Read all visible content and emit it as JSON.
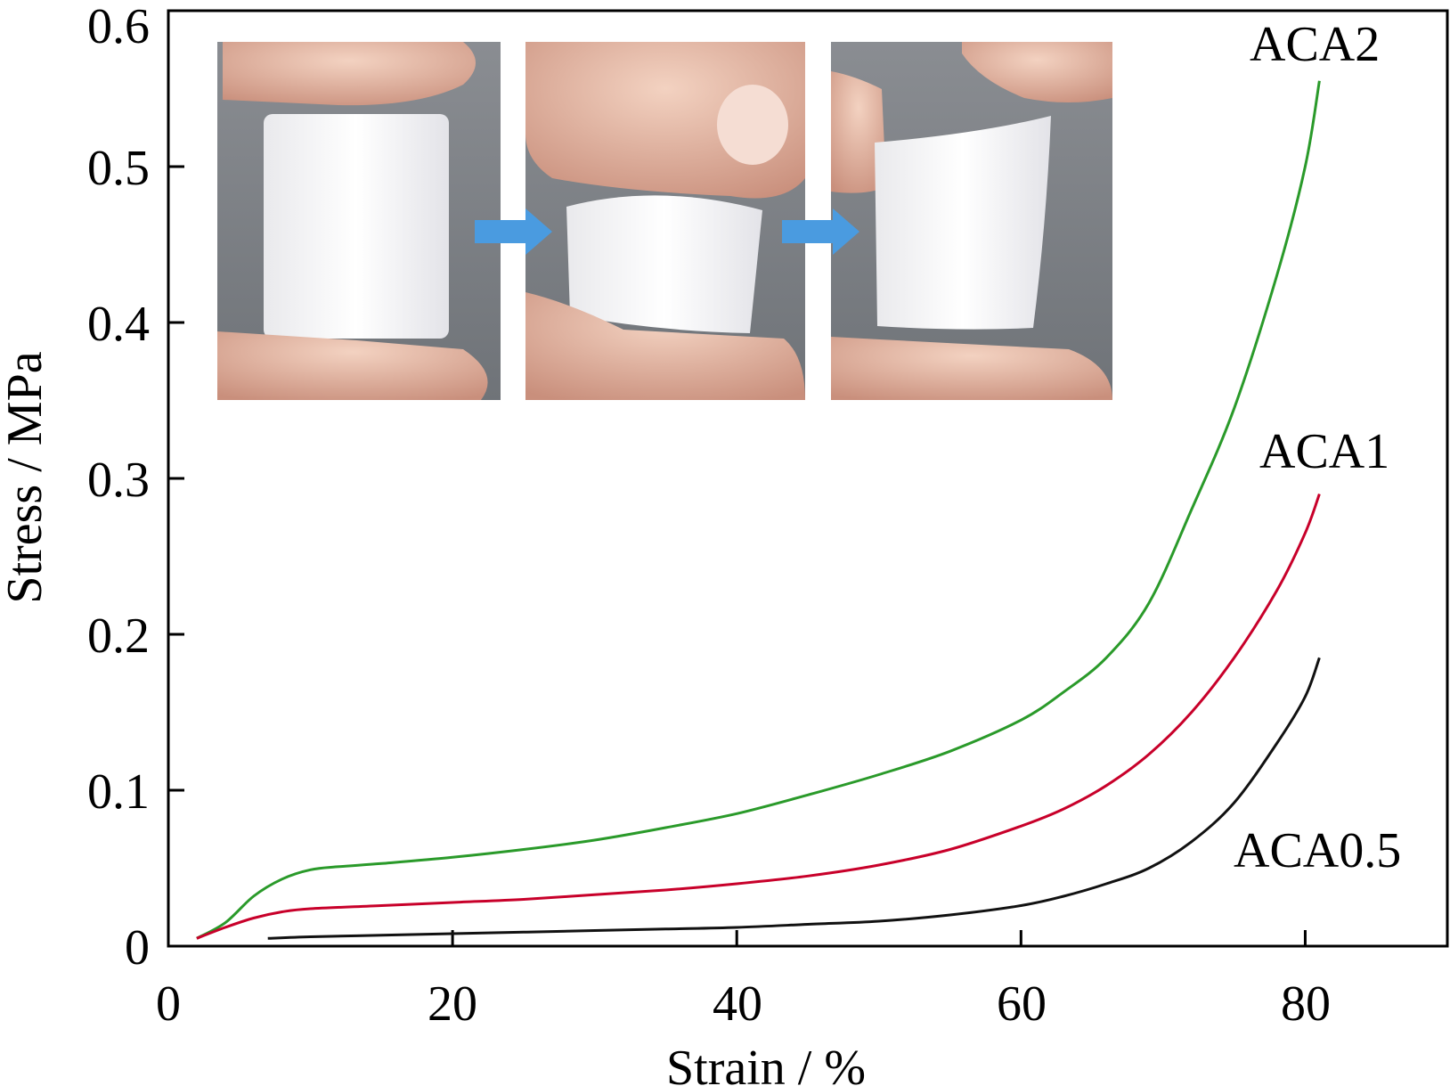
{
  "chart_data": {
    "type": "line",
    "xlabel": "Strain / %",
    "ylabel": "Stress / MPa",
    "xlim": [
      0,
      90
    ],
    "ylim": [
      0,
      0.6
    ],
    "x_ticks": [
      0,
      20,
      40,
      60,
      80
    ],
    "x_tick_labels": [
      "0",
      "20",
      "40",
      "60",
      "80"
    ],
    "y_ticks": [
      0,
      0.1,
      0.2,
      0.3,
      0.4,
      0.5,
      0.6
    ],
    "y_tick_labels": [
      "0",
      "0.1",
      "0.2",
      "0.3",
      "0.4",
      "0.5",
      "0.6"
    ],
    "grid": false,
    "legend": "none (series labelled directly next to curve ends)",
    "series": [
      {
        "name": "ACA2",
        "color": "#2a9a2a",
        "x": [
          2,
          4,
          6,
          8,
          10,
          12,
          15,
          20,
          25,
          30,
          35,
          40,
          45,
          50,
          55,
          60,
          63,
          66,
          69,
          72,
          75,
          78,
          80,
          81
        ],
        "y": [
          0.005,
          0.015,
          0.032,
          0.043,
          0.049,
          0.051,
          0.053,
          0.057,
          0.062,
          0.068,
          0.076,
          0.085,
          0.097,
          0.11,
          0.125,
          0.145,
          0.163,
          0.185,
          0.22,
          0.28,
          0.345,
          0.43,
          0.5,
          0.555
        ]
      },
      {
        "name": "ACA1",
        "color": "#c8002a",
        "x": [
          2,
          4,
          6,
          8,
          10,
          15,
          20,
          25,
          30,
          35,
          40,
          45,
          50,
          55,
          60,
          63,
          66,
          69,
          72,
          75,
          78,
          80,
          81
        ],
        "y": [
          0.005,
          0.012,
          0.018,
          0.022,
          0.024,
          0.026,
          0.028,
          0.03,
          0.033,
          0.036,
          0.04,
          0.045,
          0.052,
          0.062,
          0.077,
          0.088,
          0.103,
          0.123,
          0.15,
          0.185,
          0.228,
          0.265,
          0.29
        ]
      },
      {
        "name": "ACA0.5",
        "color": "#111111",
        "x": [
          7,
          10,
          15,
          20,
          25,
          30,
          35,
          40,
          45,
          50,
          55,
          60,
          63,
          66,
          69,
          72,
          75,
          78,
          80,
          81
        ],
        "y": [
          0.005,
          0.006,
          0.007,
          0.008,
          0.009,
          0.01,
          0.011,
          0.012,
          0.014,
          0.016,
          0.02,
          0.026,
          0.032,
          0.04,
          0.05,
          0.067,
          0.092,
          0.13,
          0.16,
          0.185
        ]
      }
    ]
  },
  "inset": {
    "description_items": [
      "uncompressed-sample-photo",
      "compressed-sample-photo",
      "recovered-sample-photo"
    ],
    "arrow_color": "#4a9be0"
  }
}
